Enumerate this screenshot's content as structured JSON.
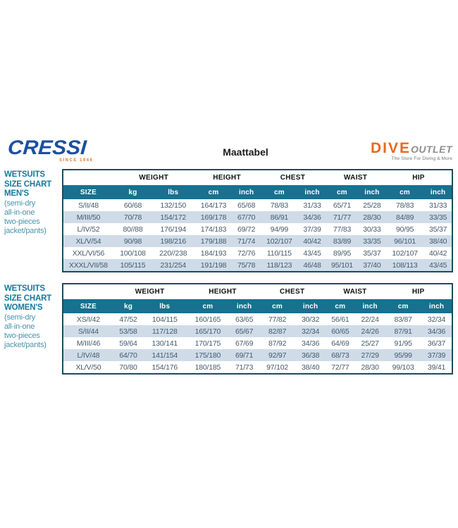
{
  "header": {
    "cressi_logo": {
      "text": "CRESSI",
      "tagline": "SINCE 1946"
    },
    "title": "Maattabel",
    "dive_logo": {
      "dive": "DIVE",
      "outlet": "OUTLET",
      "tagline": "The Store For Diving & More"
    }
  },
  "colors": {
    "cressi_blue": "#1d4f9e",
    "cressi_tagline_orange": "#e8762a",
    "dive_orange": "#e8691b",
    "outlet_gray": "#8f8f8f",
    "teal_band": "#17718f",
    "stripe_row": "#cfdce8",
    "side_label_teal": "#157a9c",
    "table_border": "#1d4b5e"
  },
  "tables": [
    {
      "side_label": {
        "title_lines": [
          "WETSUITS",
          "SIZE CHART",
          "MEN'S"
        ],
        "subtitle_lines": [
          "(semi-dry",
          "all-in-one",
          "two-pieces",
          "jacket/pants)"
        ]
      },
      "group_headers": [
        "WEIGHT",
        "HEIGHT",
        "CHEST",
        "WAIST",
        "HIP"
      ],
      "sub_headers": [
        "SIZE",
        "kg",
        "lbs",
        "cm",
        "inch",
        "cm",
        "inch",
        "cm",
        "inch",
        "cm",
        "inch"
      ],
      "rows": [
        [
          "S/II/48",
          "60/68",
          "132/150",
          "164/173",
          "65/68",
          "78/83",
          "31/33",
          "65/71",
          "25/28",
          "78/83",
          "31/33"
        ],
        [
          "M/III/50",
          "70/78",
          "154/172",
          "169/178",
          "67/70",
          "86/91",
          "34/36",
          "71/77",
          "28/30",
          "84/89",
          "33/35"
        ],
        [
          "L/IV/52",
          "80//88",
          "176/194",
          "174/183",
          "69/72",
          "94/99",
          "37/39",
          "77/83",
          "30/33",
          "90/95",
          "35/37"
        ],
        [
          "XL/V/54",
          "90/98",
          "198/216",
          "179/188",
          "71/74",
          "102/107",
          "40/42",
          "83/89",
          "33/35",
          "96/101",
          "38/40"
        ],
        [
          "XXL/VI/56",
          "100/108",
          "220//238",
          "184/193",
          "72/76",
          "110/115",
          "43/45",
          "89/95",
          "35/37",
          "102/107",
          "40/42"
        ],
        [
          "XXXL/VII/58",
          "105/115",
          "231/254",
          "191/198",
          "75/78",
          "118/123",
          "46/48",
          "95/101",
          "37/40",
          "108/113",
          "43/45"
        ]
      ]
    },
    {
      "side_label": {
        "title_lines": [
          "WETSUITS",
          "SIZE CHART",
          "WOMEN'S"
        ],
        "subtitle_lines": [
          "(semi-dry",
          "all-in-one",
          "two-pieces",
          "jacket/pants)"
        ]
      },
      "group_headers": [
        "WEIGHT",
        "HEIGHT",
        "CHEST",
        "WAIST",
        "HIP"
      ],
      "sub_headers": [
        "SIZE",
        "kg",
        "lbs",
        "cm",
        "inch",
        "cm",
        "inch",
        "cm",
        "inch",
        "cm",
        "inch"
      ],
      "rows": [
        [
          "XS/I/42",
          "47/52",
          "104/115",
          "160/165",
          "63/65",
          "77/82",
          "30/32",
          "56/61",
          "22/24",
          "83/87",
          "32/34"
        ],
        [
          "S/II/44",
          "53/58",
          "117/128",
          "165/170",
          "65/67",
          "82/87",
          "32/34",
          "60/65",
          "24/26",
          "87/91",
          "34/36"
        ],
        [
          "M/III/46",
          "59/64",
          "130/141",
          "170/175",
          "67/69",
          "87/92",
          "34/36",
          "64/69",
          "25/27",
          "91/95",
          "36/37"
        ],
        [
          "L/IV/48",
          "64/70",
          "141/154",
          "175/180",
          "69/71",
          "92/97",
          "36/38",
          "68/73",
          "27/29",
          "95/99",
          "37/39"
        ],
        [
          "XL/V/50",
          "70/80",
          "154/176",
          "180/185",
          "71/73",
          "97/102",
          "38/40",
          "72/77",
          "28/30",
          "99/103",
          "39/41"
        ]
      ]
    }
  ]
}
